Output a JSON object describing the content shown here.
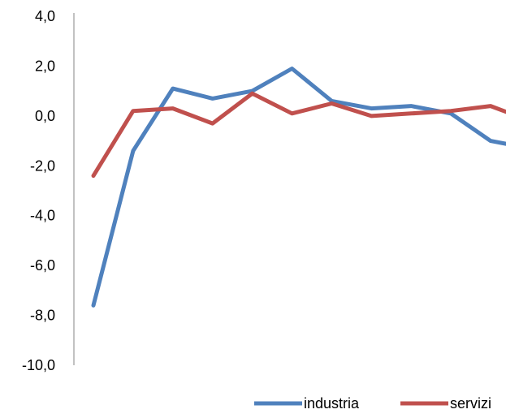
{
  "chart_data": {
    "type": "line",
    "x": [
      1,
      2,
      3,
      4,
      5,
      6,
      7,
      8,
      9,
      10,
      11,
      12
    ],
    "ylim": [
      -10.0,
      4.0
    ],
    "yticks": [
      "4,0",
      "2,0",
      "0,0",
      "-2,0",
      "-4,0",
      "-6,0",
      "-8,0",
      "-10,0"
    ],
    "grid": false,
    "legend_position": "bottom-right",
    "series": [
      {
        "name": "industria",
        "color": "#4f81bd",
        "values": [
          -7.6,
          -1.4,
          1.1,
          0.7,
          1.0,
          1.9,
          0.6,
          0.3,
          0.4,
          0.1,
          -1.0,
          -1.3
        ]
      },
      {
        "name": "servizi",
        "color": "#c0504d",
        "values": [
          -2.4,
          0.2,
          0.3,
          -0.3,
          0.9,
          0.1,
          0.5,
          0.0,
          0.1,
          0.2,
          0.4,
          -0.2
        ]
      }
    ]
  }
}
